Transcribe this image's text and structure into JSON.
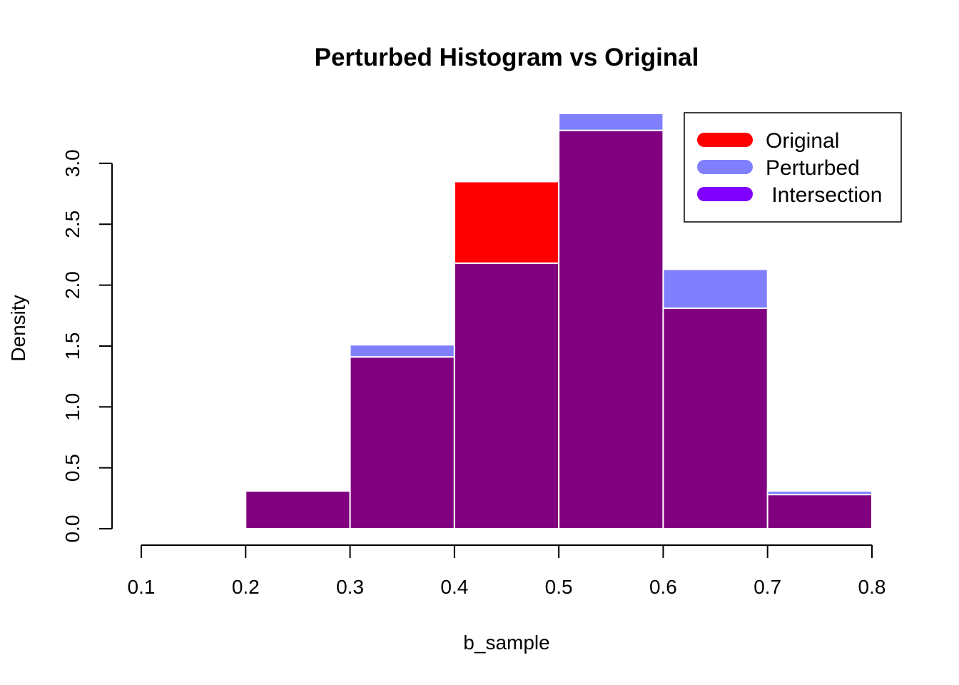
{
  "chart_data": {
    "type": "bar",
    "title": "Perturbed Histogram vs Original",
    "xlabel": "b_sample",
    "ylabel": "Density",
    "xlim": [
      0.1,
      0.8
    ],
    "ylim": [
      0,
      3.4
    ],
    "x_ticks": [
      "0.1",
      "0.2",
      "0.3",
      "0.4",
      "0.5",
      "0.6",
      "0.7",
      "0.8"
    ],
    "y_ticks": [
      "0.0",
      "0.5",
      "1.0",
      "1.5",
      "2.0",
      "2.5",
      "3.0"
    ],
    "bins": [
      [
        0.2,
        0.3
      ],
      [
        0.3,
        0.4
      ],
      [
        0.4,
        0.5
      ],
      [
        0.5,
        0.6
      ],
      [
        0.6,
        0.7
      ],
      [
        0.7,
        0.8
      ]
    ],
    "series": [
      {
        "name": "Original",
        "color": "#FF0000",
        "values": [
          0.31,
          1.41,
          2.85,
          3.27,
          1.81,
          0.28
        ]
      },
      {
        "name": "Perturbed",
        "color": "#8080FF",
        "values": [
          0.32,
          1.51,
          2.18,
          3.41,
          2.13,
          0.31
        ]
      }
    ],
    "intersection": {
      "name": " Intersection",
      "color": "#800080",
      "legend_color": "#8000FF"
    },
    "legend_position": "top-right",
    "grid": false
  }
}
